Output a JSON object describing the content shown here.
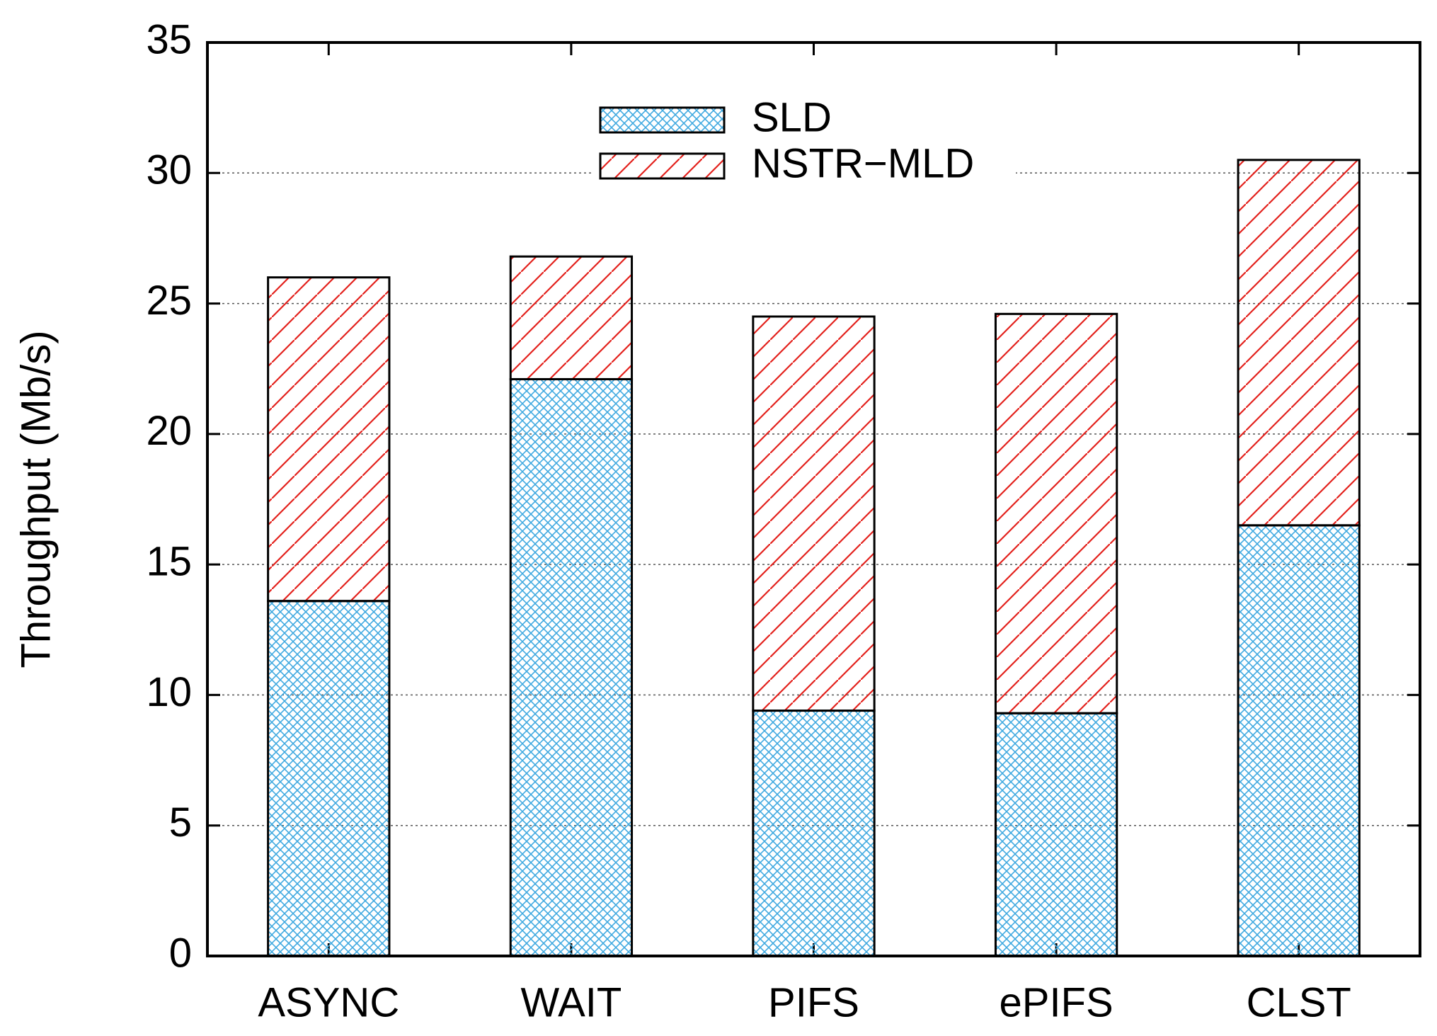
{
  "chart_data": {
    "type": "stacked-bar",
    "y_label": "Throughput (Mb/s)",
    "categories": [
      "ASYNC",
      "WAIT",
      "PIFS",
      "ePIFS",
      "CLST"
    ],
    "series": [
      {
        "name": "SLD",
        "color": "#3fa9e0",
        "values": [
          13.6,
          22.1,
          9.4,
          9.3,
          16.5
        ]
      },
      {
        "name": "NSTR−MLD",
        "color": "#e3201b",
        "values": [
          12.4,
          4.7,
          15.1,
          15.3,
          14.0
        ]
      }
    ],
    "ylim": [
      0,
      35
    ],
    "yticks": [
      0,
      5,
      10,
      15,
      20,
      25,
      30,
      35
    ],
    "grid": true
  }
}
